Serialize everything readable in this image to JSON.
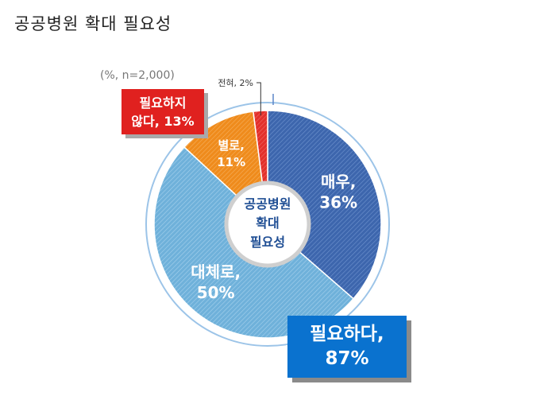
{
  "title": "공공병원 확대 필요성",
  "note": "(%, n=2,000)",
  "center_label": [
    "공공병원",
    "확대",
    "필요성"
  ],
  "callout_need": {
    "line1": "필요하다,",
    "line2": "87%"
  },
  "callout_not_need": {
    "line1": "필요하지",
    "line2": "않다, 13%"
  },
  "colors": {
    "매우": "#3d66ad",
    "대체로": "#6fb1da",
    "별로": "#ef8b1c",
    "전혀": "#e3302b",
    "need_box": "#0a72cf",
    "not_need_box": "#e0211f",
    "ring": "#9cc4e8"
  },
  "chart_data": {
    "type": "pie",
    "title": "공공병원 확대 필요성",
    "unit": "%",
    "n": 2000,
    "slices": [
      {
        "name": "매우",
        "value": 36,
        "label": "36%"
      },
      {
        "name": "대체로",
        "value": 50,
        "label": "50%"
      },
      {
        "name": "별로",
        "value": 11,
        "label": "11%"
      },
      {
        "name": "전혀",
        "value": 2,
        "label": "2%"
      }
    ],
    "groups": [
      {
        "name": "필요하다",
        "value": 87,
        "members": [
          "매우",
          "대체로"
        ]
      },
      {
        "name": "필요하지 않다",
        "value": 13,
        "members": [
          "별로",
          "전혀"
        ]
      }
    ]
  }
}
